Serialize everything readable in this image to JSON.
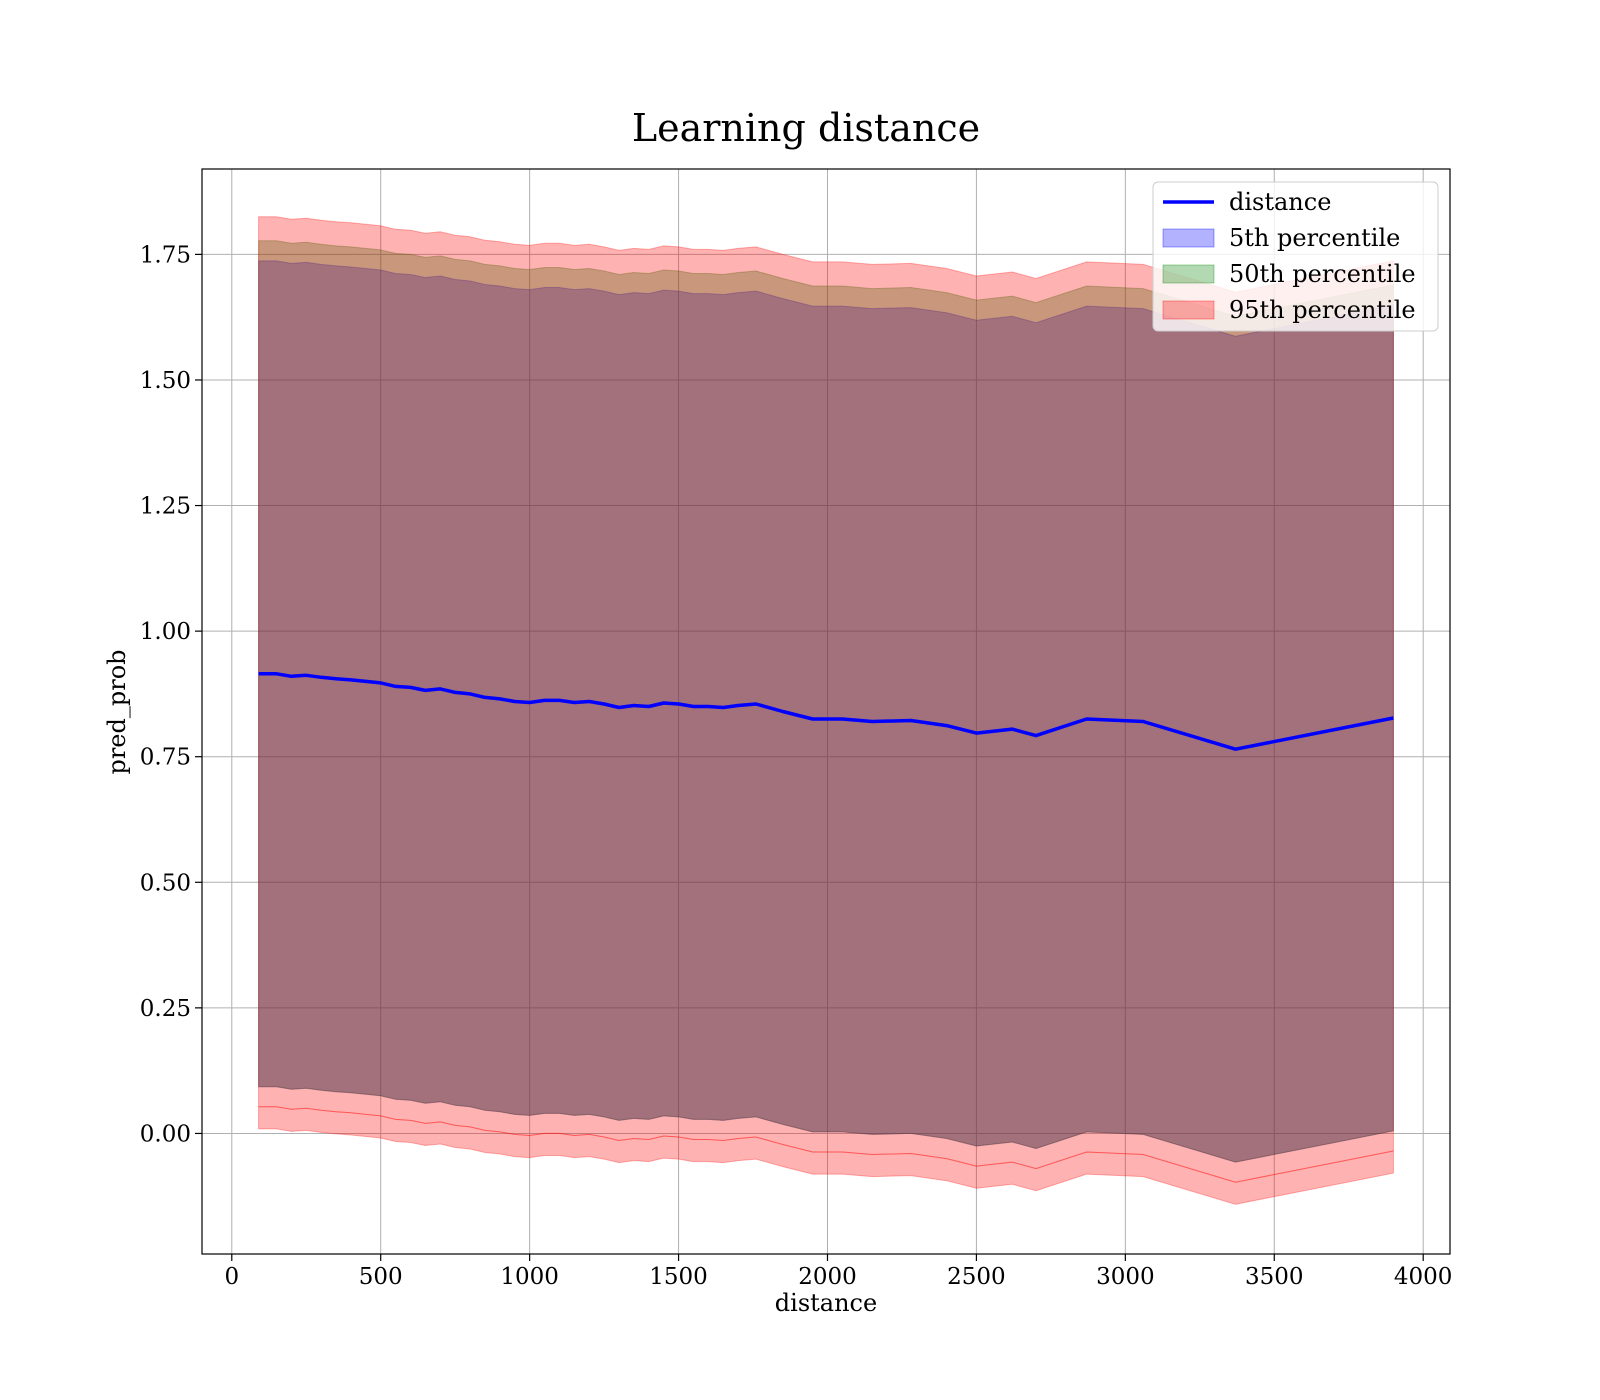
{
  "chart_data": {
    "type": "area",
    "title": "Learning distance",
    "xlabel": "distance",
    "ylabel": "pred_prob",
    "xlim": [
      -100,
      4090
    ],
    "ylim": [
      -0.24,
      1.92
    ],
    "x_ticks": [
      0,
      500,
      1000,
      1500,
      2000,
      2500,
      3000,
      3500,
      4000
    ],
    "x_tick_labels": [
      "0",
      "500",
      "1000",
      "1500",
      "2000",
      "2500",
      "3000",
      "3500",
      "4000"
    ],
    "y_ticks": [
      0,
      0.25,
      0.5,
      0.75,
      1.0,
      1.25,
      1.5,
      1.75
    ],
    "y_tick_labels": [
      "0.00",
      "0.25",
      "0.50",
      "0.75",
      "1.00",
      "1.25",
      "1.50",
      "1.75"
    ],
    "grid": true,
    "legend_position": "top-right",
    "x": [
      90,
      150,
      200,
      250,
      300,
      350,
      400,
      450,
      500,
      550,
      600,
      650,
      700,
      750,
      800,
      850,
      900,
      950,
      1000,
      1050,
      1100,
      1150,
      1200,
      1250,
      1300,
      1350,
      1400,
      1450,
      1500,
      1550,
      1600,
      1650,
      1700,
      1760,
      1850,
      1950,
      2050,
      2150,
      2280,
      2400,
      2500,
      2620,
      2700,
      2870,
      3060,
      3370,
      3900
    ],
    "line": {
      "name": "distance",
      "color": "#0000ff",
      "values": [
        0.915,
        0.915,
        0.91,
        0.912,
        0.908,
        0.905,
        0.903,
        0.9,
        0.897,
        0.89,
        0.888,
        0.882,
        0.885,
        0.878,
        0.875,
        0.868,
        0.865,
        0.86,
        0.858,
        0.862,
        0.862,
        0.858,
        0.86,
        0.855,
        0.848,
        0.852,
        0.85,
        0.857,
        0.855,
        0.85,
        0.85,
        0.848,
        0.852,
        0.855,
        0.84,
        0.825,
        0.825,
        0.82,
        0.822,
        0.812,
        0.797,
        0.805,
        0.792,
        0.825,
        0.82,
        0.765,
        0.827
      ]
    },
    "bands": [
      {
        "name": "5th percentile",
        "color": "#0000ff",
        "opacity": 0.3,
        "lower": [
          0.093,
          0.093,
          0.088,
          0.09,
          0.086,
          0.083,
          0.081,
          0.078,
          0.075,
          0.068,
          0.066,
          0.06,
          0.063,
          0.056,
          0.053,
          0.046,
          0.043,
          0.038,
          0.036,
          0.04,
          0.04,
          0.036,
          0.038,
          0.033,
          0.026,
          0.03,
          0.028,
          0.035,
          0.033,
          0.028,
          0.028,
          0.026,
          0.03,
          0.033,
          0.018,
          0.003,
          0.003,
          -0.002,
          0.0,
          -0.01,
          -0.025,
          -0.017,
          -0.03,
          0.003,
          -0.002,
          -0.057,
          0.005
        ],
        "upper": [
          1.737,
          1.737,
          1.732,
          1.734,
          1.73,
          1.727,
          1.725,
          1.722,
          1.719,
          1.712,
          1.71,
          1.704,
          1.707,
          1.7,
          1.697,
          1.69,
          1.687,
          1.682,
          1.68,
          1.684,
          1.684,
          1.68,
          1.682,
          1.677,
          1.67,
          1.674,
          1.672,
          1.679,
          1.677,
          1.672,
          1.672,
          1.67,
          1.674,
          1.677,
          1.662,
          1.647,
          1.647,
          1.642,
          1.644,
          1.634,
          1.619,
          1.627,
          1.614,
          1.647,
          1.642,
          1.587,
          1.649
        ]
      },
      {
        "name": "50th percentile",
        "color": "#008000",
        "opacity": 0.3,
        "lower": [
          0.093,
          0.093,
          0.088,
          0.09,
          0.086,
          0.083,
          0.081,
          0.078,
          0.075,
          0.068,
          0.066,
          0.06,
          0.063,
          0.056,
          0.053,
          0.046,
          0.043,
          0.038,
          0.036,
          0.04,
          0.04,
          0.036,
          0.038,
          0.033,
          0.026,
          0.03,
          0.028,
          0.035,
          0.033,
          0.028,
          0.028,
          0.026,
          0.03,
          0.033,
          0.018,
          0.003,
          0.003,
          -0.002,
          0.0,
          -0.01,
          -0.025,
          -0.017,
          -0.03,
          0.003,
          -0.002,
          -0.057,
          0.005
        ],
        "upper": [
          1.777,
          1.777,
          1.772,
          1.774,
          1.77,
          1.767,
          1.765,
          1.762,
          1.759,
          1.752,
          1.75,
          1.744,
          1.747,
          1.74,
          1.737,
          1.73,
          1.727,
          1.722,
          1.72,
          1.724,
          1.724,
          1.72,
          1.722,
          1.717,
          1.71,
          1.714,
          1.712,
          1.719,
          1.717,
          1.712,
          1.712,
          1.71,
          1.714,
          1.717,
          1.702,
          1.687,
          1.687,
          1.682,
          1.684,
          1.674,
          1.659,
          1.667,
          1.654,
          1.687,
          1.682,
          1.627,
          1.689
        ]
      },
      {
        "name": "95th percentile",
        "color": "#ff0000",
        "opacity": 0.3,
        "lower": [
          0.053,
          0.053,
          0.048,
          0.05,
          0.046,
          0.043,
          0.041,
          0.038,
          0.035,
          0.028,
          0.026,
          0.02,
          0.023,
          0.016,
          0.013,
          0.006,
          0.003,
          -0.002,
          -0.004,
          0.0,
          0.0,
          -0.004,
          -0.002,
          -0.007,
          -0.014,
          -0.01,
          -0.012,
          -0.005,
          -0.007,
          -0.012,
          -0.012,
          -0.014,
          -0.01,
          -0.007,
          -0.022,
          -0.037,
          -0.037,
          -0.042,
          -0.04,
          -0.05,
          -0.065,
          -0.057,
          -0.07,
          -0.037,
          -0.042,
          -0.097,
          -0.035
        ],
        "upper": [
          1.825,
          1.825,
          1.82,
          1.822,
          1.818,
          1.815,
          1.813,
          1.81,
          1.807,
          1.8,
          1.798,
          1.792,
          1.795,
          1.788,
          1.785,
          1.778,
          1.775,
          1.77,
          1.768,
          1.772,
          1.772,
          1.768,
          1.77,
          1.765,
          1.758,
          1.762,
          1.76,
          1.767,
          1.765,
          1.76,
          1.76,
          1.758,
          1.762,
          1.765,
          1.75,
          1.735,
          1.735,
          1.73,
          1.732,
          1.722,
          1.707,
          1.715,
          1.702,
          1.735,
          1.73,
          1.675,
          1.737
        ]
      },
      {
        "name": "95th percentile",
        "color": "#ff0000",
        "opacity": 0.3,
        "lower": [
          0.009,
          0.009,
          0.004,
          0.006,
          0.002,
          -0.001,
          -0.003,
          -0.006,
          -0.009,
          -0.016,
          -0.018,
          -0.024,
          -0.021,
          -0.028,
          -0.031,
          -0.038,
          -0.041,
          -0.046,
          -0.048,
          -0.044,
          -0.044,
          -0.048,
          -0.046,
          -0.051,
          -0.058,
          -0.054,
          -0.056,
          -0.049,
          -0.051,
          -0.056,
          -0.056,
          -0.058,
          -0.054,
          -0.051,
          -0.066,
          -0.081,
          -0.081,
          -0.086,
          -0.084,
          -0.094,
          -0.109,
          -0.101,
          -0.114,
          -0.081,
          -0.086,
          -0.141,
          -0.079
        ],
        "upper": [
          0.053,
          0.053,
          0.048,
          0.05,
          0.046,
          0.043,
          0.041,
          0.038,
          0.035,
          0.028,
          0.026,
          0.02,
          0.023,
          0.016,
          0.013,
          0.006,
          0.003,
          -0.002,
          -0.004,
          0.0,
          0.0,
          -0.004,
          -0.002,
          -0.007,
          -0.014,
          -0.01,
          -0.012,
          -0.005,
          -0.007,
          -0.012,
          -0.012,
          -0.014,
          -0.01,
          -0.007,
          -0.022,
          -0.037,
          -0.037,
          -0.042,
          -0.04,
          -0.05,
          -0.065,
          -0.057,
          -0.07,
          -0.037,
          -0.042,
          -0.097,
          -0.035
        ]
      }
    ],
    "legend": [
      {
        "label": "distance",
        "kind": "line",
        "color": "#0000ff"
      },
      {
        "label": "5th percentile",
        "kind": "patch",
        "color": "#0000ff"
      },
      {
        "label": "50th percentile",
        "kind": "patch",
        "color": "#008000"
      },
      {
        "label": "95th percentile",
        "kind": "patch",
        "color": "#ff0000"
      }
    ]
  }
}
